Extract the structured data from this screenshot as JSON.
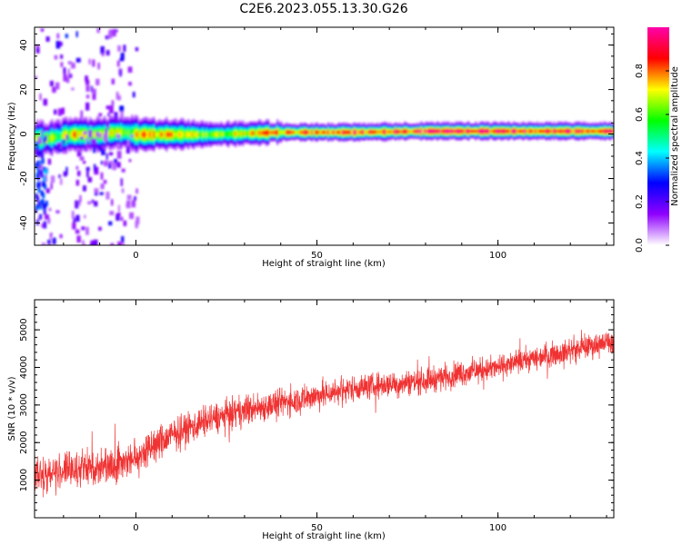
{
  "title": "C2E6.2023.055.13.30.G26",
  "chart_data": [
    {
      "type": "heatmap",
      "xlabel": "Height of straight line (km)",
      "ylabel": "Frequency (Hz)",
      "xlim": [
        -28,
        132
      ],
      "ylim": [
        -50,
        48
      ],
      "x_ticks": [
        0,
        50,
        100
      ],
      "y_ticks": [
        -40,
        -20,
        0,
        20,
        40
      ],
      "band": {
        "x": [
          -28,
          -25,
          -22,
          -18,
          -14,
          -10,
          -6,
          -3,
          0,
          10,
          20,
          40,
          60,
          80,
          95,
          105,
          120,
          132
        ],
        "center_hz": [
          -2,
          -2,
          -1,
          0,
          0,
          0,
          1,
          1,
          0,
          0,
          0,
          1,
          1,
          1.5,
          1.5,
          1.5,
          1.5,
          1.5
        ],
        "peak_amplitude": [
          0.7,
          0.75,
          0.6,
          0.8,
          0.75,
          0.7,
          0.75,
          0.6,
          0.8,
          0.8,
          0.65,
          0.85,
          0.9,
          0.95,
          1.0,
          0.95,
          0.95,
          0.95
        ]
      },
      "colorbar": {
        "label": "Normalized spectral amplitude",
        "range": [
          0,
          1
        ],
        "ticks": [
          "0.0",
          "0.2",
          "0.4",
          "0.6",
          "0.8"
        ],
        "colors": [
          "#ffffff",
          "#8f00ff",
          "#0000ff",
          "#00ffff",
          "#00ff00",
          "#ffff00",
          "#ff0000",
          "#ff00aa"
        ]
      }
    },
    {
      "type": "line",
      "xlabel": "Height of straight line (km)",
      "ylabel": "SNR (10 * v/v)",
      "xlim": [
        -28,
        132
      ],
      "ylim": [
        0,
        5800
      ],
      "x_ticks": [
        0,
        50,
        100
      ],
      "y_ticks": [
        1000,
        2000,
        3000,
        4000,
        5000
      ],
      "color": "#f03232",
      "trend": {
        "x": [
          -28,
          -20,
          -10,
          0,
          10,
          20,
          30,
          40,
          50,
          60,
          70,
          80,
          90,
          100,
          110,
          120,
          132
        ],
        "mean": [
          1100,
          1250,
          1350,
          1600,
          2200,
          2600,
          2850,
          3050,
          3250,
          3450,
          3550,
          3650,
          3850,
          4000,
          4250,
          4450,
          4700
        ],
        "spread": [
          700,
          700,
          700,
          750,
          650,
          600,
          600,
          550,
          550,
          500,
          500,
          500,
          500,
          450,
          450,
          450,
          450
        ]
      }
    }
  ]
}
